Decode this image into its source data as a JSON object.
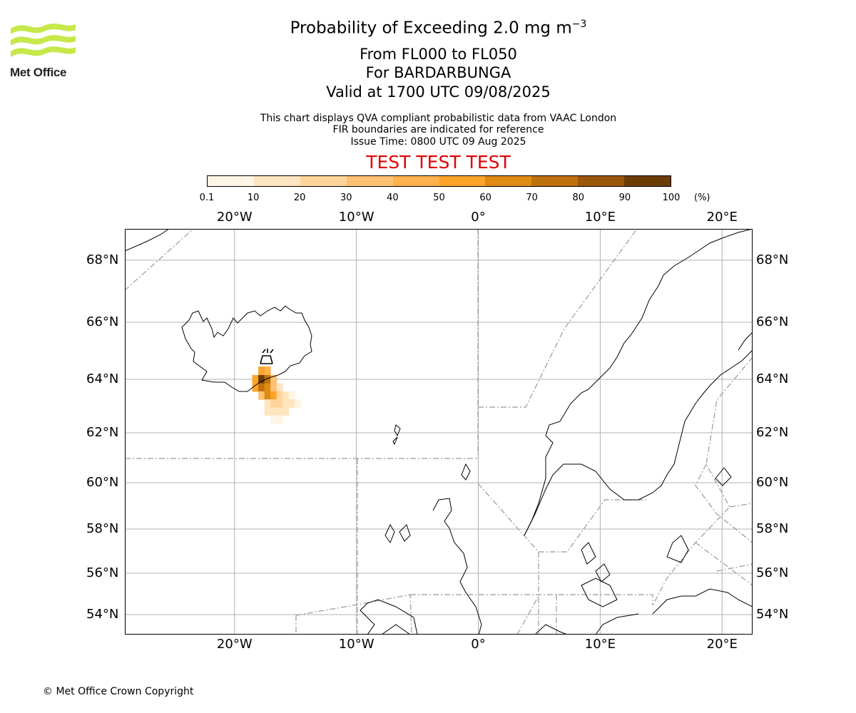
{
  "logo": {
    "text": "Met Office"
  },
  "title": {
    "line1": "Probability of Exceeding 2.0 mg m",
    "line1_sup": "−3",
    "line2": "From FL000 to FL050",
    "line3": "For BARDARBUNGA",
    "line4": "Valid at 1700 UTC 09/08/2025"
  },
  "subtitle": {
    "line1": "This chart displays QVA compliant probabilistic data from VAAC London",
    "line2": "FIR boundaries are indicated for reference",
    "line3": "Issue Time: 0800 UTC 09 Aug 2025"
  },
  "banner": "TEST TEST TEST",
  "colorbar": {
    "ticks": [
      "0.1",
      "10",
      "20",
      "30",
      "40",
      "50",
      "60",
      "70",
      "80",
      "90",
      "100"
    ],
    "unit": "(%)",
    "colors": [
      "#fff5e6",
      "#ffe4c0",
      "#ffd49a",
      "#ffc273",
      "#ffb14d",
      "#fca42a",
      "#df8a13",
      "#bf710d",
      "#9a5709",
      "#6c3c05"
    ]
  },
  "map": {
    "lon_labels": [
      "20°W",
      "10°W",
      "0°",
      "10°E",
      "20°E"
    ],
    "lat_labels": [
      "68°N",
      "66°N",
      "64°N",
      "62°N",
      "60°N",
      "58°N",
      "56°N",
      "54°N"
    ],
    "volcano_icon": "volcano-icon"
  },
  "chart_data": {
    "type": "heatmap",
    "title": "Probability of Exceeding 2.0 mg m−3",
    "region": "BARDARBUNGA",
    "xlim": [
      -29,
      22.5
    ],
    "ylim": [
      53.3,
      69
    ],
    "volcano": {
      "lon": -17.5,
      "lat": 64.6
    },
    "cells_lon_lat_percent": [
      [
        -17.8,
        64.3,
        50
      ],
      [
        -17.3,
        64.3,
        40
      ],
      [
        -18.3,
        64.0,
        50
      ],
      [
        -17.8,
        64.0,
        90
      ],
      [
        -17.3,
        64.0,
        70
      ],
      [
        -16.8,
        64.0,
        30
      ],
      [
        -18.3,
        63.7,
        50
      ],
      [
        -17.8,
        63.7,
        70
      ],
      [
        -17.3,
        63.7,
        60
      ],
      [
        -16.8,
        63.7,
        30
      ],
      [
        -16.3,
        63.7,
        10
      ],
      [
        -17.8,
        63.4,
        30
      ],
      [
        -17.3,
        63.4,
        60
      ],
      [
        -16.8,
        63.4,
        50
      ],
      [
        -16.3,
        63.4,
        20
      ],
      [
        -15.8,
        63.4,
        10
      ],
      [
        -15.3,
        63.4,
        0.1
      ],
      [
        -17.3,
        63.1,
        10
      ],
      [
        -16.8,
        63.1,
        20
      ],
      [
        -16.3,
        63.1,
        20
      ],
      [
        -15.8,
        63.1,
        10
      ],
      [
        -15.3,
        63.1,
        10
      ],
      [
        -14.8,
        63.1,
        0.1
      ],
      [
        -17.3,
        62.8,
        10
      ],
      [
        -16.8,
        62.8,
        10
      ],
      [
        -16.3,
        62.8,
        10
      ],
      [
        -15.8,
        62.8,
        10
      ],
      [
        -16.8,
        62.5,
        0.1
      ],
      [
        -16.3,
        62.5,
        0.1
      ]
    ]
  },
  "copyright": "© Met Office Crown Copyright"
}
